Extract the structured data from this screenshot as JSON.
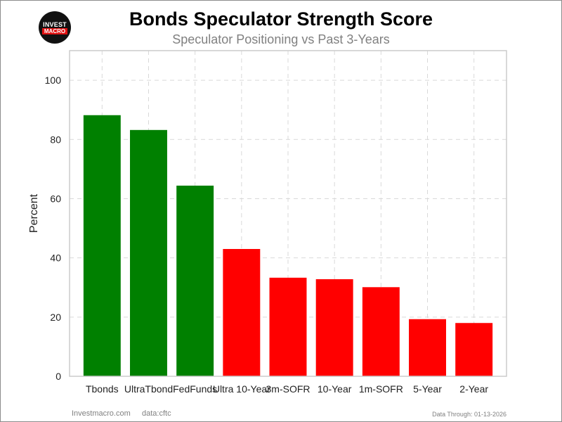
{
  "logo": {
    "line1": "INVEST",
    "line2": "MACRO"
  },
  "chart_data": {
    "type": "bar",
    "title": "Bonds Speculator Strength Score",
    "subtitle": "Speculator Positioning vs Past 3-Years",
    "ylabel": "Percent",
    "xlabel": "",
    "ylim": [
      0,
      110
    ],
    "yticks": [
      0,
      20,
      40,
      60,
      80,
      100
    ],
    "grid": true,
    "categories": [
      "Tbonds",
      "UltraTbond",
      "FedFunds",
      "Ultra 10-Year",
      "3m-SOFR",
      "10-Year",
      "1m-SOFR",
      "5-Year",
      "2-Year"
    ],
    "values": [
      88.2,
      83.2,
      64.4,
      43.0,
      33.3,
      32.8,
      30.1,
      19.3,
      18.0
    ],
    "colors": [
      "#008000",
      "#008000",
      "#008000",
      "#ff0000",
      "#ff0000",
      "#ff0000",
      "#ff0000",
      "#ff0000",
      "#ff0000"
    ]
  },
  "footer": {
    "site": "Investmacro.com",
    "source": "data:cftc",
    "date": "Data Through: 01-13-2026"
  }
}
